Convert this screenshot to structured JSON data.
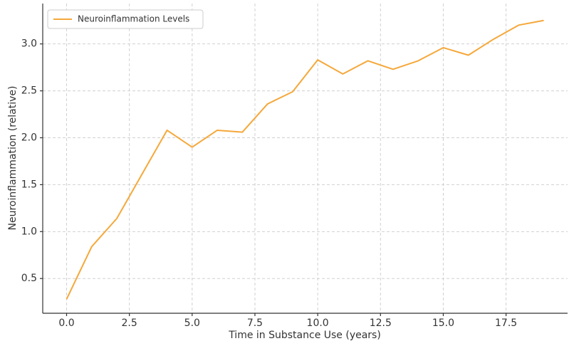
{
  "chart_data": {
    "type": "line",
    "x_label": "Time in Substance Use (years)",
    "y_label": "Neuroinflammation (relative)",
    "x": [
      0,
      1,
      2,
      3,
      4,
      5,
      6,
      7,
      8,
      9,
      10,
      11,
      12,
      13,
      14,
      15,
      16,
      17,
      18,
      19
    ],
    "series": [
      {
        "name": "Neuroinflammation Levels",
        "color": "#f5a83a",
        "values": [
          0.28,
          0.84,
          1.14,
          1.61,
          2.08,
          1.9,
          2.08,
          2.06,
          2.36,
          2.49,
          2.83,
          2.68,
          2.82,
          2.73,
          2.82,
          2.96,
          2.88,
          3.05,
          3.2,
          3.25
        ]
      }
    ],
    "xlim": [
      -0.95,
      19.95
    ],
    "ylim": [
      0.13,
      3.43
    ],
    "xticks": [
      {
        "value": 0,
        "label": "0.0"
      },
      2.5,
      {
        "value": 5,
        "label": "5.0"
      },
      7.5,
      {
        "value": 10,
        "label": "10.0"
      },
      12.5,
      {
        "value": 15,
        "label": "15.0"
      },
      17.5
    ],
    "yticks": [
      0.5,
      {
        "value": 1,
        "label": "1.0"
      },
      1.5,
      {
        "value": 2,
        "label": "2.0"
      },
      2.5,
      {
        "value": 3,
        "label": "3.0"
      }
    ],
    "grid": true,
    "legend": "upper left"
  }
}
